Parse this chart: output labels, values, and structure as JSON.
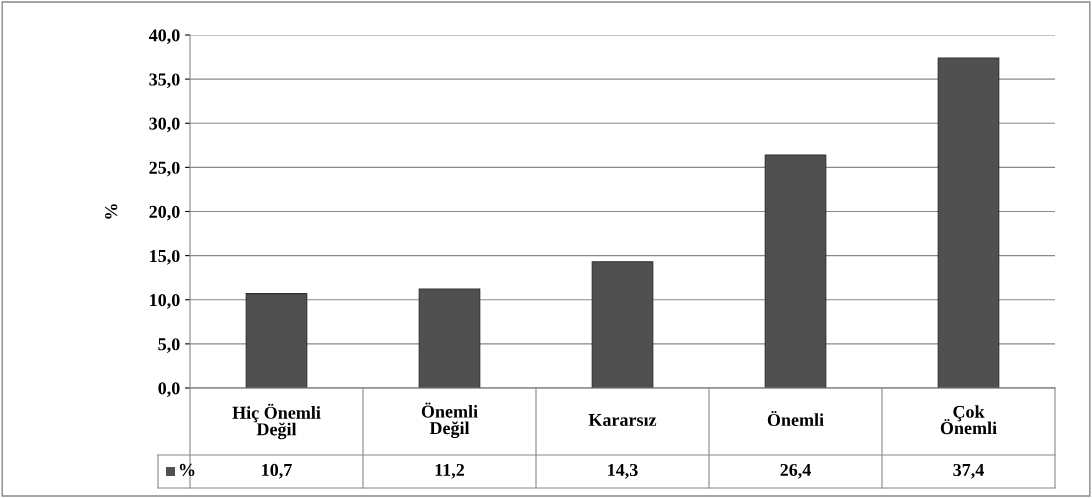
{
  "chart_data": {
    "type": "bar",
    "ylabel": "%",
    "categories": [
      "Hiç Önemli\nDeğil",
      "Önemli\nDeğil",
      "Kararsız",
      "Önemli",
      "Çok\nÖnemli"
    ],
    "series": [
      {
        "name": "%",
        "color": "#505050",
        "values": [
          10.7,
          11.2,
          14.3,
          26.4,
          37.4
        ],
        "value_labels": [
          "10,7",
          "11,2",
          "14,3",
          "26,4",
          "37,4"
        ]
      }
    ],
    "ylim": [
      0,
      40
    ],
    "yticks": [
      {
        "value": 0,
        "label": "0,0"
      },
      {
        "value": 5,
        "label": "5,0"
      },
      {
        "value": 10,
        "label": "10,0"
      },
      {
        "value": 15,
        "label": "15,0"
      },
      {
        "value": 20,
        "label": "20,0"
      },
      {
        "value": 25,
        "label": "25,0"
      },
      {
        "value": 30,
        "label": "30,0"
      },
      {
        "value": 35,
        "label": "35,0"
      },
      {
        "value": 40,
        "label": "40,0"
      }
    ],
    "grid": "y",
    "legend": "bottom"
  }
}
